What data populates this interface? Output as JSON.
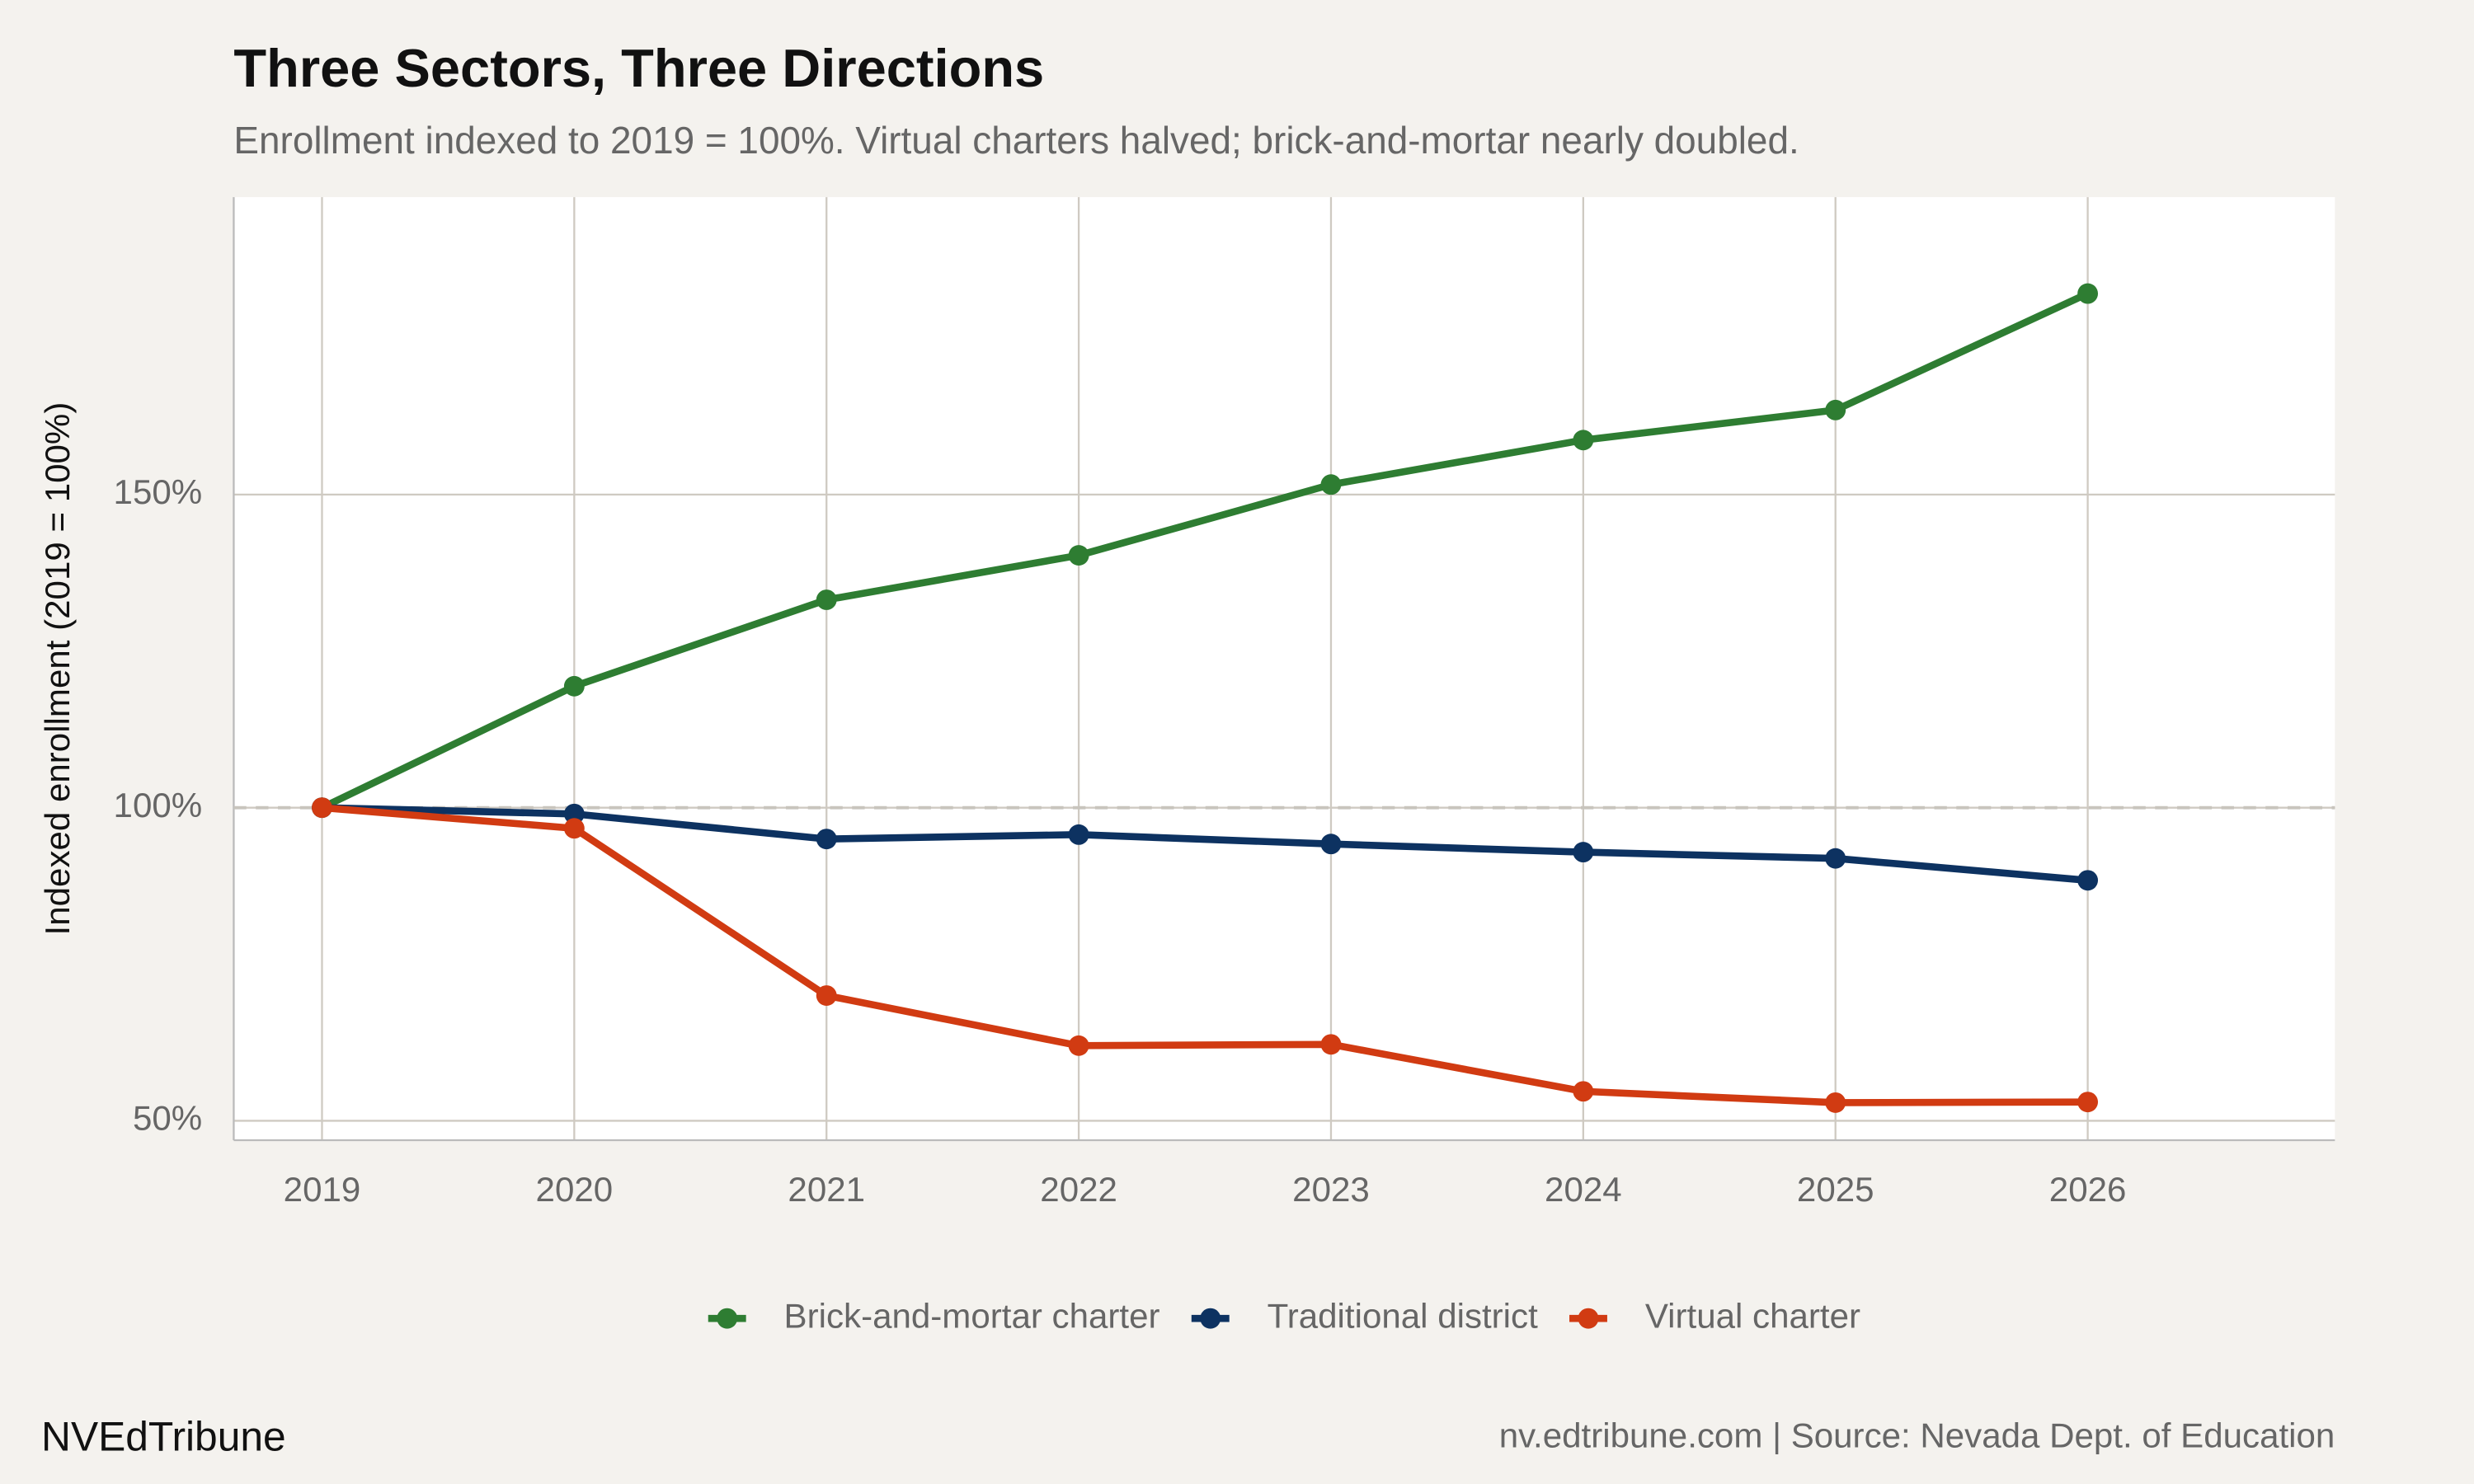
{
  "chart_data": {
    "type": "line",
    "title": "Three Sectors, Three Directions",
    "subtitle": "Enrollment indexed to 2019 = 100%. Virtual charters halved; brick-and-mortar nearly doubled.",
    "y_label": "Indexed enrollment (2019 = 100%)",
    "caption_left": "NVEdTribune",
    "caption_right": "nv.edtribune.com | Source: Nevada Dept. of Education",
    "x": [
      2019,
      2020,
      2021,
      2022,
      2023,
      2024,
      2025,
      2026
    ],
    "series": [
      {
        "name": "Brick-and-mortar charter",
        "color": "#2e7d32",
        "values": [
          100,
          119.4,
          133.2,
          140.3,
          151.6,
          158.7,
          163.5,
          182.1
        ]
      },
      {
        "name": "Traditional district",
        "color": "#0d3261",
        "values": [
          100,
          99.0,
          95.0,
          95.7,
          94.2,
          92.9,
          91.9,
          88.4
        ]
      },
      {
        "name": "Virtual charter",
        "color": "#d13b12",
        "values": [
          100,
          96.7,
          70.0,
          62.0,
          62.2,
          54.7,
          52.9,
          53.0
        ]
      }
    ],
    "xlim": [
      2018.65,
      2026.98
    ],
    "ylim": [
      46.9,
      197.5
    ],
    "xticks": [
      2019,
      2020,
      2021,
      2022,
      2023,
      2024,
      2025,
      2026
    ],
    "yticks": [
      {
        "value": 50,
        "label": "50%"
      },
      {
        "value": 100,
        "label": "100%"
      },
      {
        "value": 150,
        "label": "150%"
      }
    ],
    "reference_line": 100,
    "grid": true,
    "legend": "bottom"
  }
}
